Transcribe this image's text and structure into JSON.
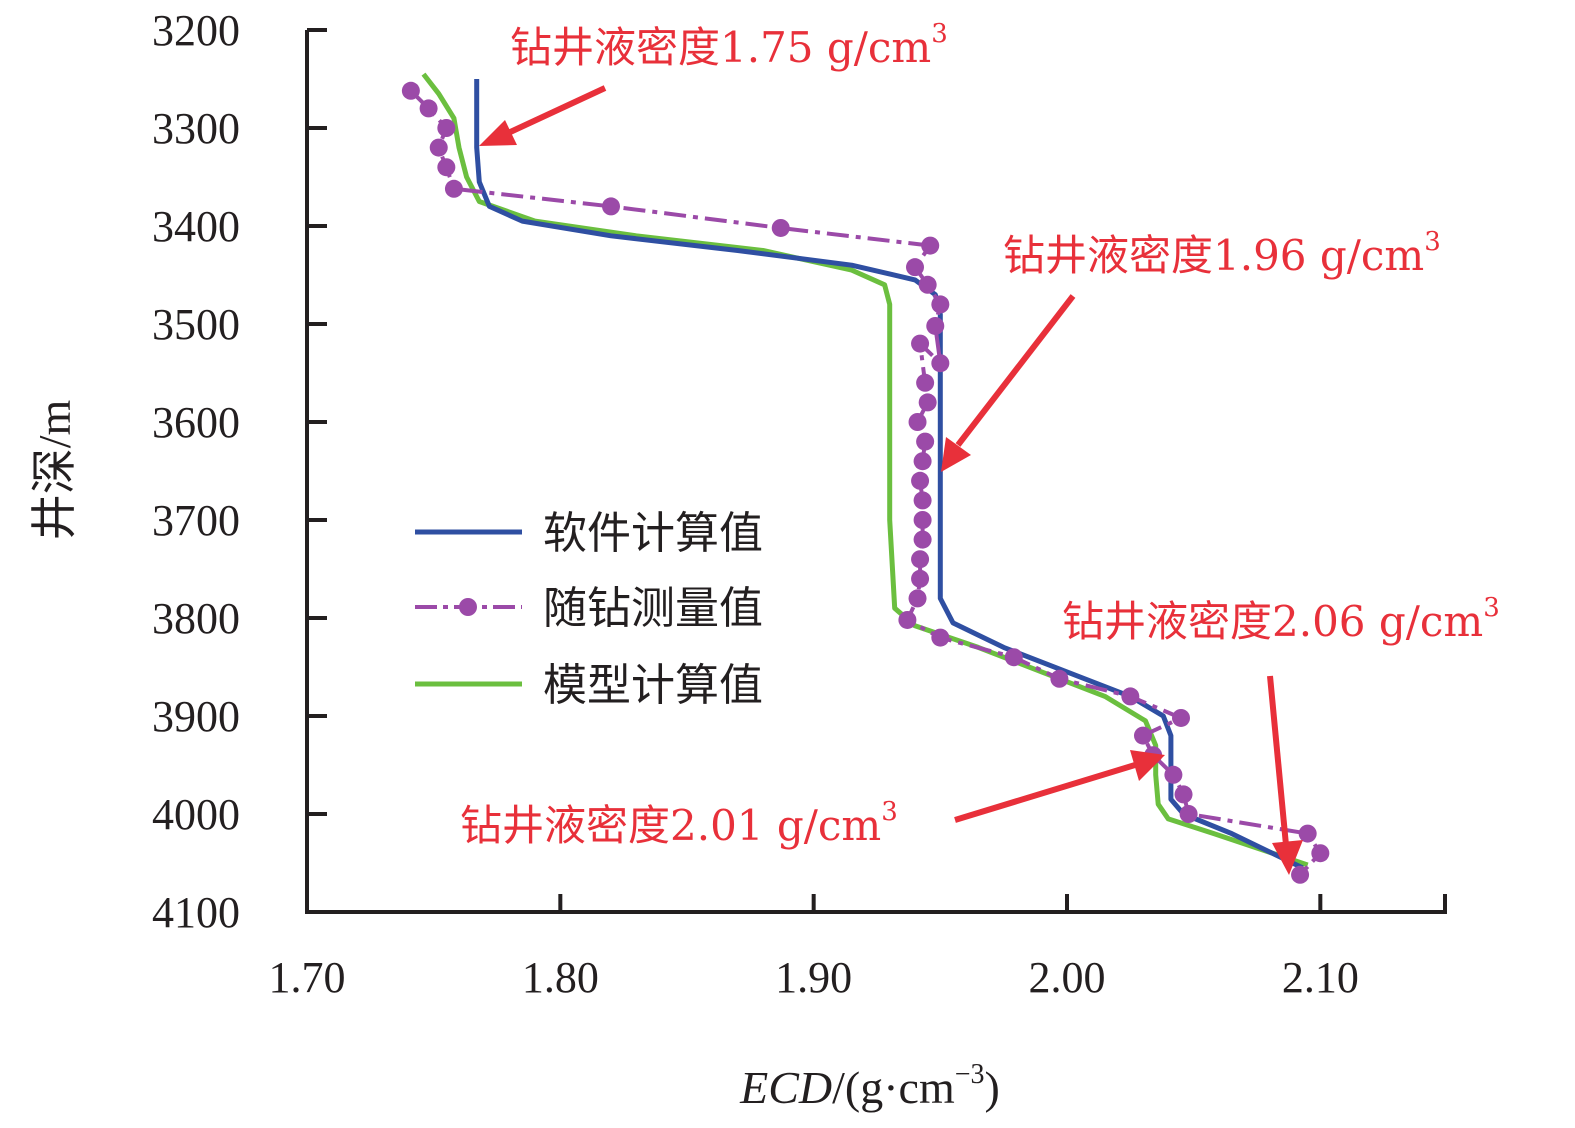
{
  "chart_data": {
    "type": "line",
    "xlabel_italic": "ECD",
    "xlabel_rest": "/(g·cm",
    "xlabel_sup": "−3",
    "xlabel_close": ")",
    "ylabel": "井深/m",
    "xlim": [
      1.7,
      2.15
    ],
    "ylim": [
      3200,
      4100
    ],
    "y_inverted": true,
    "xticks": [
      "1.70",
      "1.80",
      "1.90",
      "2.00",
      "2.10"
    ],
    "xtick_values": [
      1.7,
      1.8,
      1.9,
      2.0,
      2.1
    ],
    "yticks": [
      "3200",
      "3300",
      "3400",
      "3500",
      "3600",
      "3700",
      "3800",
      "3900",
      "4000",
      "4100"
    ],
    "ytick_values": [
      3200,
      3300,
      3400,
      3500,
      3600,
      3700,
      3800,
      3900,
      4000,
      4100
    ],
    "legend_position": "center-left",
    "series": [
      {
        "name": "软件计算值",
        "color": "#2f4fa2",
        "style": "solid",
        "points": [
          [
            1.767,
            3250
          ],
          [
            1.767,
            3320
          ],
          [
            1.768,
            3355
          ],
          [
            1.772,
            3380
          ],
          [
            1.785,
            3395
          ],
          [
            1.82,
            3410
          ],
          [
            1.87,
            3425
          ],
          [
            1.915,
            3440
          ],
          [
            1.94,
            3455
          ],
          [
            1.948,
            3470
          ],
          [
            1.95,
            3490
          ],
          [
            1.95,
            3600
          ],
          [
            1.95,
            3700
          ],
          [
            1.95,
            3780
          ],
          [
            1.955,
            3805
          ],
          [
            1.975,
            3830
          ],
          [
            2.0,
            3855
          ],
          [
            2.025,
            3880
          ],
          [
            2.038,
            3900
          ],
          [
            2.041,
            3920
          ],
          [
            2.041,
            3960
          ],
          [
            2.041,
            3985
          ],
          [
            2.046,
            4000
          ],
          [
            2.065,
            4020
          ],
          [
            2.093,
            4055
          ]
        ]
      },
      {
        "name": "随钻测量值",
        "color": "#9b4aa8",
        "style": "dashdot-markers",
        "points": [
          [
            1.741,
            3262
          ],
          [
            1.748,
            3280
          ],
          [
            1.755,
            3300
          ],
          [
            1.752,
            3320
          ],
          [
            1.755,
            3340
          ],
          [
            1.758,
            3362
          ],
          [
            1.82,
            3380
          ],
          [
            1.887,
            3402
          ],
          [
            1.946,
            3420
          ],
          [
            1.94,
            3442
          ],
          [
            1.945,
            3460
          ],
          [
            1.95,
            3480
          ],
          [
            1.948,
            3502
          ],
          [
            1.95,
            3540
          ],
          [
            1.942,
            3520
          ],
          [
            1.944,
            3560
          ],
          [
            1.945,
            3580
          ],
          [
            1.941,
            3600
          ],
          [
            1.944,
            3620
          ],
          [
            1.943,
            3640
          ],
          [
            1.942,
            3660
          ],
          [
            1.943,
            3680
          ],
          [
            1.943,
            3700
          ],
          [
            1.943,
            3720
          ],
          [
            1.942,
            3740
          ],
          [
            1.942,
            3760
          ],
          [
            1.941,
            3780
          ],
          [
            1.937,
            3802
          ],
          [
            1.95,
            3820
          ],
          [
            1.979,
            3840
          ],
          [
            1.997,
            3862
          ],
          [
            2.025,
            3880
          ],
          [
            2.045,
            3902
          ],
          [
            2.03,
            3920
          ],
          [
            2.034,
            3940
          ],
          [
            2.042,
            3960
          ],
          [
            2.046,
            3980
          ],
          [
            2.048,
            4000
          ],
          [
            2.095,
            4020
          ],
          [
            2.1,
            4040
          ],
          [
            2.092,
            4062
          ]
        ]
      },
      {
        "name": "模型计算值",
        "color": "#6bbf3f",
        "style": "solid",
        "points": [
          [
            1.746,
            3245
          ],
          [
            1.752,
            3265
          ],
          [
            1.758,
            3290
          ],
          [
            1.76,
            3320
          ],
          [
            1.763,
            3350
          ],
          [
            1.768,
            3375
          ],
          [
            1.79,
            3395
          ],
          [
            1.83,
            3410
          ],
          [
            1.88,
            3425
          ],
          [
            1.915,
            3445
          ],
          [
            1.928,
            3460
          ],
          [
            1.93,
            3480
          ],
          [
            1.93,
            3600
          ],
          [
            1.93,
            3700
          ],
          [
            1.932,
            3790
          ],
          [
            1.94,
            3808
          ],
          [
            1.965,
            3830
          ],
          [
            1.99,
            3855
          ],
          [
            2.015,
            3880
          ],
          [
            2.031,
            3905
          ],
          [
            2.035,
            3930
          ],
          [
            2.035,
            3960
          ],
          [
            2.036,
            3990
          ],
          [
            2.04,
            4005
          ],
          [
            2.058,
            4020
          ],
          [
            2.095,
            4052
          ]
        ]
      }
    ],
    "annotations": [
      {
        "text": "钻井液密度1.75 g/cm",
        "sup": "3",
        "arrow_to": [
          1.768,
          3325
        ]
      },
      {
        "text": "钻井液密度1.96 g/cm",
        "sup": "3",
        "arrow_to": [
          1.953,
          3655
        ]
      },
      {
        "text": "钻井液密度2.06 g/cm",
        "sup": "3",
        "arrow_to": [
          2.092,
          4060
        ]
      },
      {
        "text": "钻井液密度2.01 g/cm",
        "sup": "3",
        "arrow_to": [
          2.034,
          3962
        ]
      }
    ]
  }
}
